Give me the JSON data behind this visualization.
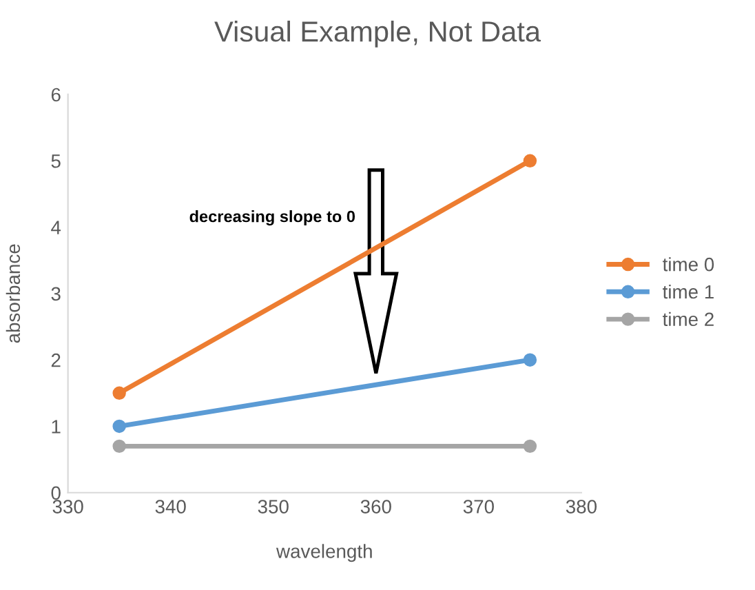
{
  "chart_data": {
    "type": "line",
    "title": "Visual Example, Not Data",
    "xlabel": "wavelength",
    "ylabel": "absorbance",
    "x": [
      335,
      375
    ],
    "series": [
      {
        "name": "time 0",
        "color": "#ed7d31",
        "values": [
          1.5,
          5
        ]
      },
      {
        "name": "time 1",
        "color": "#5b9bd5",
        "values": [
          1.0,
          2.0
        ]
      },
      {
        "name": "time 2",
        "color": "#a5a5a5",
        "values": [
          0.7,
          0.7
        ]
      }
    ],
    "xlim": [
      330,
      380
    ],
    "xticks": [
      330,
      340,
      350,
      360,
      370,
      380
    ],
    "ylim": [
      0,
      6
    ],
    "yticks": [
      0,
      1,
      2,
      3,
      4,
      5,
      6
    ],
    "annotations": [
      "decreasing slope to 0"
    ],
    "marker": "circle",
    "legend": "right",
    "grid": false
  }
}
